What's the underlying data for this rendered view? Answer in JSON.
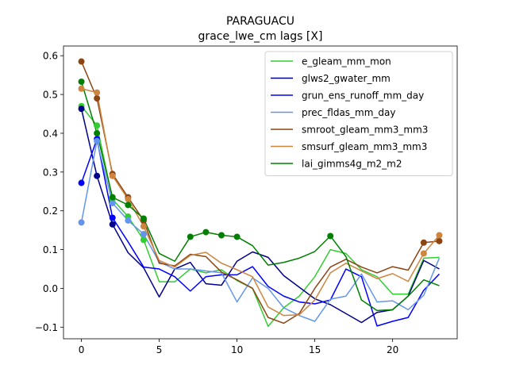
{
  "chart_data": {
    "type": "line",
    "title": "PARAGUACU",
    "subtitle": "grace_lwe_cm lags [X]",
    "xlabel": "",
    "ylabel": "",
    "xlim": [
      -1.15,
      24.15
    ],
    "ylim": [
      -0.13,
      0.625
    ],
    "xticks": [
      0,
      5,
      10,
      15,
      20
    ],
    "yticks": [
      -0.1,
      0.0,
      0.1,
      0.2,
      0.3,
      0.4,
      0.5,
      0.6
    ],
    "ytick_labels": [
      "−0.1",
      "0.0",
      "0.1",
      "0.2",
      "0.3",
      "0.4",
      "0.5",
      "0.6"
    ],
    "grid": false,
    "legend_position": "upper right",
    "x": [
      0,
      1,
      2,
      3,
      4,
      5,
      6,
      7,
      8,
      9,
      10,
      11,
      12,
      13,
      14,
      15,
      16,
      17,
      18,
      19,
      20,
      21,
      22,
      23
    ],
    "series": [
      {
        "name": "e_gleam_mm_mon",
        "color": "#32cd32",
        "values": [
          0.47,
          0.42,
          0.23,
          0.185,
          0.125,
          0.017,
          0.017,
          0.05,
          0.04,
          0.048,
          0.02,
          0.0,
          -0.098,
          -0.05,
          -0.02,
          0.03,
          0.1,
          0.09,
          0.048,
          0.03,
          -0.015,
          -0.015,
          0.078,
          0.08
        ],
        "markers": [
          0,
          1,
          2,
          3,
          4
        ]
      },
      {
        "name": "glws2_gwater_mm",
        "color": "#00008b",
        "values": [
          0.463,
          0.29,
          0.165,
          0.092,
          0.053,
          -0.022,
          0.05,
          0.067,
          0.012,
          0.008,
          0.07,
          0.094,
          0.08,
          0.033,
          0.003,
          -0.027,
          -0.042,
          -0.065,
          -0.088,
          -0.062,
          -0.055,
          -0.02,
          0.072,
          0.05
        ],
        "markers": [
          0,
          1,
          2
        ]
      },
      {
        "name": "grun_ens_runoff_mm_day",
        "color": "#0000ff",
        "values": [
          0.272,
          0.385,
          0.182,
          0.12,
          0.055,
          0.05,
          0.03,
          -0.007,
          0.03,
          0.035,
          0.035,
          0.056,
          0.005,
          -0.02,
          -0.035,
          -0.04,
          -0.03,
          0.05,
          0.03,
          -0.097,
          -0.085,
          -0.075,
          -0.005,
          0.037
        ],
        "markers": [
          0,
          1,
          2
        ]
      },
      {
        "name": "prec_fldas_mm_day",
        "color": "#6495ed",
        "values": [
          0.17,
          0.38,
          0.22,
          0.175,
          0.14,
          0.068,
          0.05,
          0.05,
          0.045,
          0.04,
          -0.035,
          0.027,
          0.0,
          -0.05,
          -0.07,
          -0.085,
          -0.028,
          -0.02,
          0.037,
          -0.035,
          -0.032,
          -0.055,
          -0.018,
          0.078
        ],
        "markers": [
          0,
          1,
          2,
          3,
          4
        ]
      },
      {
        "name": "smroot_gleam_mm3_mm3",
        "color": "#8b4513",
        "values": [
          0.585,
          0.49,
          0.295,
          0.235,
          0.175,
          0.065,
          0.058,
          0.088,
          0.082,
          0.042,
          0.022,
          0.0,
          -0.075,
          -0.09,
          -0.065,
          0.0,
          0.055,
          0.075,
          0.055,
          0.04,
          0.056,
          0.047,
          0.118,
          0.122
        ],
        "markers": [
          0,
          1,
          2,
          3,
          4,
          22,
          23
        ]
      },
      {
        "name": "smsurf_gleam_mm3_mm3",
        "color": "#cd853f",
        "values": [
          0.515,
          0.505,
          0.29,
          0.23,
          0.16,
          0.072,
          0.055,
          0.085,
          0.093,
          0.065,
          0.048,
          0.03,
          -0.048,
          -0.07,
          -0.068,
          -0.03,
          0.04,
          0.065,
          0.045,
          0.025,
          0.038,
          0.018,
          0.09,
          0.137
        ],
        "markers": [
          0,
          1,
          2,
          3,
          4,
          22,
          23
        ]
      },
      {
        "name": "lai_gimms4g_m2_m2",
        "color": "#008000",
        "values": [
          0.533,
          0.4,
          0.235,
          0.215,
          0.18,
          0.09,
          0.07,
          0.133,
          0.145,
          0.137,
          0.133,
          0.11,
          0.06,
          0.067,
          0.078,
          0.095,
          0.135,
          0.082,
          -0.03,
          -0.057,
          -0.055,
          -0.02,
          0.022,
          0.007
        ],
        "markers": [
          0,
          1,
          2,
          3,
          4,
          7,
          8,
          9,
          10,
          16
        ]
      }
    ]
  }
}
